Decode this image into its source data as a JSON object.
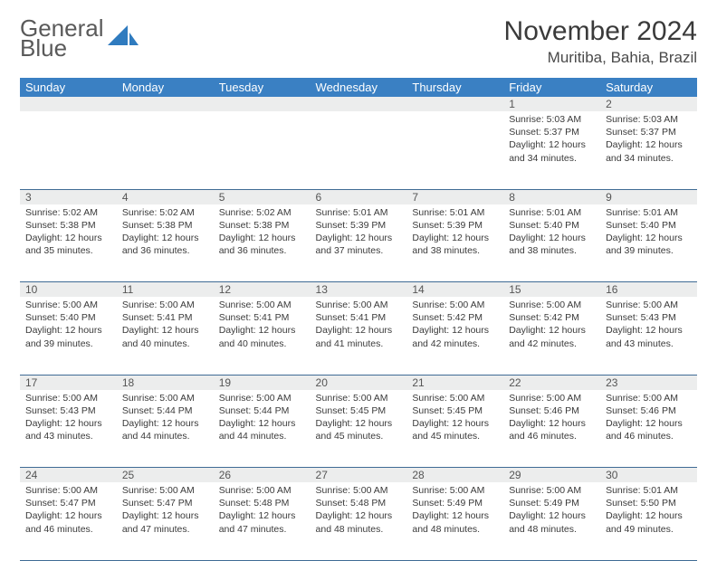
{
  "brand": {
    "line1": "General",
    "line2": "Blue"
  },
  "title": "November 2024",
  "location": "Muritiba, Bahia, Brazil",
  "colors": {
    "header_bg": "#3a80c3",
    "header_text": "#ffffff",
    "daynum_bg": "#eceded",
    "border": "#3f6b95",
    "logo_shape": "#2f7bbf"
  },
  "weekdays": [
    "Sunday",
    "Monday",
    "Tuesday",
    "Wednesday",
    "Thursday",
    "Friday",
    "Saturday"
  ],
  "weeks": [
    [
      null,
      null,
      null,
      null,
      null,
      {
        "n": "1",
        "sr": "5:03 AM",
        "ss": "5:37 PM",
        "dl": "12 hours and 34 minutes."
      },
      {
        "n": "2",
        "sr": "5:03 AM",
        "ss": "5:37 PM",
        "dl": "12 hours and 34 minutes."
      }
    ],
    [
      {
        "n": "3",
        "sr": "5:02 AM",
        "ss": "5:38 PM",
        "dl": "12 hours and 35 minutes."
      },
      {
        "n": "4",
        "sr": "5:02 AM",
        "ss": "5:38 PM",
        "dl": "12 hours and 36 minutes."
      },
      {
        "n": "5",
        "sr": "5:02 AM",
        "ss": "5:38 PM",
        "dl": "12 hours and 36 minutes."
      },
      {
        "n": "6",
        "sr": "5:01 AM",
        "ss": "5:39 PM",
        "dl": "12 hours and 37 minutes."
      },
      {
        "n": "7",
        "sr": "5:01 AM",
        "ss": "5:39 PM",
        "dl": "12 hours and 38 minutes."
      },
      {
        "n": "8",
        "sr": "5:01 AM",
        "ss": "5:40 PM",
        "dl": "12 hours and 38 minutes."
      },
      {
        "n": "9",
        "sr": "5:01 AM",
        "ss": "5:40 PM",
        "dl": "12 hours and 39 minutes."
      }
    ],
    [
      {
        "n": "10",
        "sr": "5:00 AM",
        "ss": "5:40 PM",
        "dl": "12 hours and 39 minutes."
      },
      {
        "n": "11",
        "sr": "5:00 AM",
        "ss": "5:41 PM",
        "dl": "12 hours and 40 minutes."
      },
      {
        "n": "12",
        "sr": "5:00 AM",
        "ss": "5:41 PM",
        "dl": "12 hours and 40 minutes."
      },
      {
        "n": "13",
        "sr": "5:00 AM",
        "ss": "5:41 PM",
        "dl": "12 hours and 41 minutes."
      },
      {
        "n": "14",
        "sr": "5:00 AM",
        "ss": "5:42 PM",
        "dl": "12 hours and 42 minutes."
      },
      {
        "n": "15",
        "sr": "5:00 AM",
        "ss": "5:42 PM",
        "dl": "12 hours and 42 minutes."
      },
      {
        "n": "16",
        "sr": "5:00 AM",
        "ss": "5:43 PM",
        "dl": "12 hours and 43 minutes."
      }
    ],
    [
      {
        "n": "17",
        "sr": "5:00 AM",
        "ss": "5:43 PM",
        "dl": "12 hours and 43 minutes."
      },
      {
        "n": "18",
        "sr": "5:00 AM",
        "ss": "5:44 PM",
        "dl": "12 hours and 44 minutes."
      },
      {
        "n": "19",
        "sr": "5:00 AM",
        "ss": "5:44 PM",
        "dl": "12 hours and 44 minutes."
      },
      {
        "n": "20",
        "sr": "5:00 AM",
        "ss": "5:45 PM",
        "dl": "12 hours and 45 minutes."
      },
      {
        "n": "21",
        "sr": "5:00 AM",
        "ss": "5:45 PM",
        "dl": "12 hours and 45 minutes."
      },
      {
        "n": "22",
        "sr": "5:00 AM",
        "ss": "5:46 PM",
        "dl": "12 hours and 46 minutes."
      },
      {
        "n": "23",
        "sr": "5:00 AM",
        "ss": "5:46 PM",
        "dl": "12 hours and 46 minutes."
      }
    ],
    [
      {
        "n": "24",
        "sr": "5:00 AM",
        "ss": "5:47 PM",
        "dl": "12 hours and 46 minutes."
      },
      {
        "n": "25",
        "sr": "5:00 AM",
        "ss": "5:47 PM",
        "dl": "12 hours and 47 minutes."
      },
      {
        "n": "26",
        "sr": "5:00 AM",
        "ss": "5:48 PM",
        "dl": "12 hours and 47 minutes."
      },
      {
        "n": "27",
        "sr": "5:00 AM",
        "ss": "5:48 PM",
        "dl": "12 hours and 48 minutes."
      },
      {
        "n": "28",
        "sr": "5:00 AM",
        "ss": "5:49 PM",
        "dl": "12 hours and 48 minutes."
      },
      {
        "n": "29",
        "sr": "5:00 AM",
        "ss": "5:49 PM",
        "dl": "12 hours and 48 minutes."
      },
      {
        "n": "30",
        "sr": "5:01 AM",
        "ss": "5:50 PM",
        "dl": "12 hours and 49 minutes."
      }
    ]
  ],
  "labels": {
    "sunrise": "Sunrise: ",
    "sunset": "Sunset: ",
    "daylight": "Daylight: "
  }
}
